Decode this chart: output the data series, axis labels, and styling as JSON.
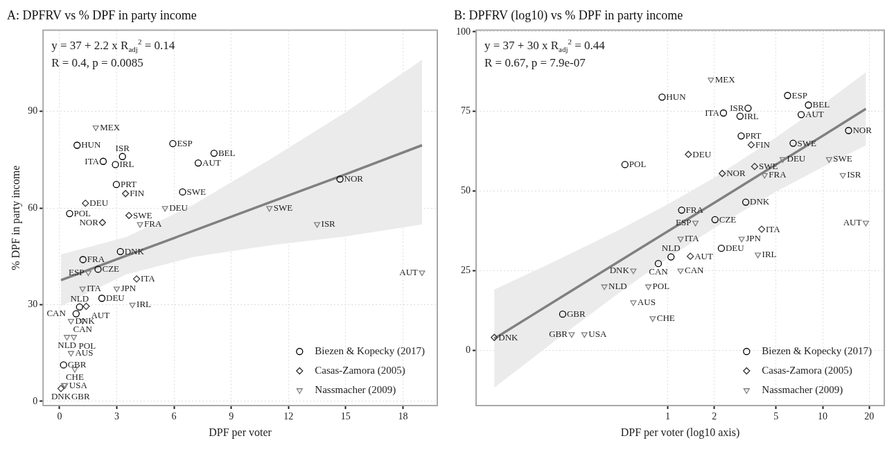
{
  "chart_data": [
    {
      "type": "scatter",
      "title": "A: DPFRV vs % DPF in party income",
      "xlabel": "DPF per voter",
      "ylabel": "% DPF in party income",
      "annotations": [
        "y = 37 + 2.2 x R$_{adj}$$^{2}$ = 0.14",
        "R = 0.4, p = 0.0085"
      ],
      "xlim": [
        -0.86,
        19.8
      ],
      "ylim": [
        -1.3,
        115.2
      ],
      "xticks": [
        0,
        3,
        6,
        9,
        12,
        15,
        18
      ],
      "yticks": [
        0,
        30,
        60,
        90
      ],
      "grid": true,
      "legend": "bottom right",
      "series": [
        {
          "name": "Biezen & Kopecky (2017)",
          "color": "#000000",
          "marker": "circle",
          "x": [
            0.92,
            2.29,
            2.93,
            3.3,
            2.98,
            5.94,
            7.27,
            8.1,
            6.45,
            0.53,
            14.7,
            1.23,
            2.02,
            3.19,
            2.22,
            1.05,
            0.87,
            0.21
          ],
          "values": [
            79.5,
            74.5,
            73.5,
            76,
            67.3,
            80,
            74,
            77,
            65,
            58.3,
            69,
            44,
            41,
            46.5,
            32,
            29.3,
            27.2,
            11.3
          ],
          "value_labels": [
            "HUN",
            "ITA",
            "IRL",
            "ISR",
            "PRT",
            "ESP",
            "AUT",
            "BEL",
            "SWE",
            "POL",
            "NOR",
            "FRA",
            "CZE",
            "DNK",
            "DEU",
            "NLD",
            "CAN",
            "GBR"
          ]
        },
        {
          "name": "Casas-Zamora (2005)",
          "color": "#333333",
          "marker": "diamond",
          "x": [
            1.36,
            3.46,
            3.64,
            2.25,
            4.04,
            1.4,
            0.076
          ],
          "values": [
            61.5,
            64.5,
            57.7,
            55.5,
            38,
            29.5,
            4
          ],
          "value_labels": [
            "DEU",
            "FIN",
            "SWE",
            "NOR",
            "ITA",
            "AUT",
            "DNK"
          ]
        },
        {
          "name": "Nassmacher (2009)",
          "color": "#808080",
          "marker": "triangle",
          "x": [
            1.9,
            5.53,
            4.22,
            11,
            13.5,
            19,
            1.51,
            1.21,
            3,
            3.82,
            1.21,
            0.6,
            0.39,
            0.75,
            0.6,
            0.8,
            0.24,
            0.29
          ],
          "values": [
            85,
            60,
            55,
            60,
            55,
            40,
            40,
            35,
            35,
            30,
            25,
            25,
            20,
            20,
            15,
            10,
            5,
            5
          ],
          "value_labels": [
            "MEX",
            "DEU",
            "FRA",
            "SWE",
            "ISR",
            "AUT",
            "ESP",
            "ITA",
            "JPN",
            "IRL",
            "CAN",
            "DNK",
            "NLD",
            "POL",
            "AUS",
            "CHE",
            "GBR",
            "USA"
          ]
        },
        {
          "type": "line",
          "color": "#808080",
          "x": [
            0.076,
            3.5,
            7,
            11,
            15,
            19
          ],
          "values": [
            37.6,
            45.2,
            52.9,
            61.7,
            70.5,
            79.5
          ],
          "lower": [
            29.6,
            39.4,
            44.8,
            48.4,
            51.2,
            54.9
          ],
          "upper": [
            45.6,
            51,
            61,
            75,
            89.8,
            106
          ]
        }
      ]
    },
    {
      "type": "scatter",
      "title": "B: DPFRV (log10) vs % DPF in party income",
      "xlabel": "DPF per voter (log10 axis)",
      "annotations": [
        "y = 37 + 30 x R$_{adj}$$^{2}$ = 0.44",
        "R = 0.67, p = 7.9e-07"
      ],
      "log": "x",
      "xlim": [
        0.058,
        25
      ],
      "ylim": [
        -17.4,
        100.5
      ],
      "xticks": [
        1,
        2,
        5,
        10,
        20
      ],
      "yticks": [
        0,
        25,
        50,
        75,
        100
      ],
      "grid": true,
      "legend": "bottom right",
      "series": [
        {
          "name": "Biezen & Kopecky (2017)",
          "color": "#000000",
          "marker": "circle",
          "x": [
            0.92,
            2.29,
            2.93,
            3.3,
            2.98,
            5.94,
            7.27,
            8.1,
            6.45,
            0.53,
            14.7,
            1.23,
            2.02,
            3.19,
            2.22,
            1.05,
            0.87,
            0.21
          ],
          "values": [
            79.5,
            74.5,
            73.5,
            76,
            67.3,
            80,
            74,
            77,
            65,
            58.3,
            69,
            44,
            41,
            46.5,
            32,
            29.3,
            27.2,
            11.3
          ],
          "value_labels": [
            "HUN",
            "ITA",
            "IRL",
            "ISR",
            "PRT",
            "ESP",
            "AUT",
            "BEL",
            "SWE",
            "POL",
            "NOR",
            "FRA",
            "CZE",
            "DNK",
            "DEU",
            "NLD",
            "CAN",
            "GBR"
          ]
        },
        {
          "name": "Casas-Zamora (2005)",
          "color": "#333333",
          "marker": "diamond",
          "x": [
            1.36,
            3.46,
            3.64,
            2.25,
            4.04,
            1.4,
            0.076
          ],
          "values": [
            61.5,
            64.5,
            57.7,
            55.5,
            38,
            29.5,
            4
          ],
          "value_labels": [
            "DEU",
            "FIN",
            "SWE",
            "NOR",
            "ITA",
            "AUT",
            "DNK"
          ]
        },
        {
          "name": "Nassmacher (2009)",
          "color": "#808080",
          "marker": "triangle",
          "x": [
            1.9,
            5.53,
            4.22,
            11,
            13.5,
            19,
            1.51,
            1.21,
            3,
            3.82,
            1.21,
            0.6,
            0.39,
            0.75,
            0.6,
            0.8,
            0.24,
            0.29
          ],
          "values": [
            85,
            60,
            55,
            60,
            55,
            40,
            40,
            35,
            35,
            30,
            25,
            25,
            20,
            20,
            15,
            10,
            5,
            5
          ],
          "value_labels": [
            "MEX",
            "DEU",
            "FRA",
            "SWE",
            "ISR",
            "AUT",
            "ESP",
            "ITA",
            "JPN",
            "IRL",
            "CAN",
            "DNK",
            "NLD",
            "POL",
            "AUS",
            "CHE",
            "GBR",
            "USA"
          ]
        },
        {
          "type": "line",
          "color": "#808080",
          "x": [
            0.076,
            0.2,
            0.5,
            1,
            2,
            5,
            10,
            19
          ],
          "values": [
            3.6,
            16.3,
            28.3,
            37.3,
            46.3,
            58.3,
            67.3,
            75.8
          ],
          "lower": [
            -11.8,
            4,
            18.5,
            28.8,
            38.4,
            49.8,
            57.5,
            64.3
          ],
          "upper": [
            19,
            28.6,
            38.1,
            45.8,
            54.2,
            66.8,
            77.1,
            87.3
          ]
        }
      ]
    }
  ]
}
